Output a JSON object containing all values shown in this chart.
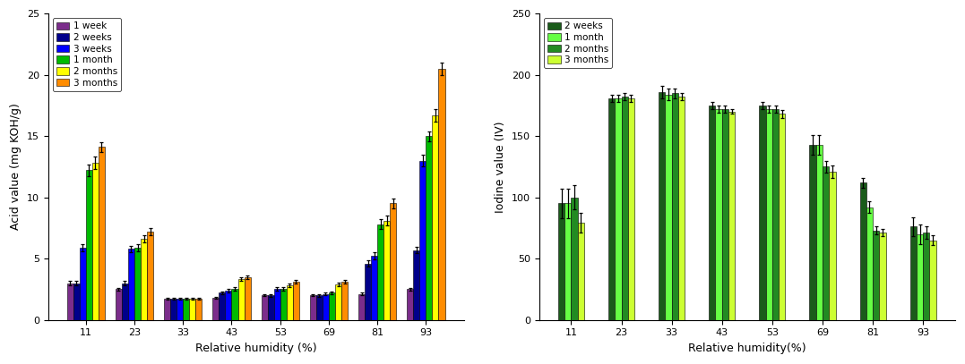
{
  "left_chart": {
    "xlabel": "Relative humidity (%)",
    "ylabel": "Acid value (mg KOH/g)",
    "ylim": [
      0,
      25
    ],
    "yticks": [
      0,
      5,
      10,
      15,
      20,
      25
    ],
    "categories": [
      11,
      23,
      33,
      43,
      53,
      69,
      81,
      93
    ],
    "series": [
      {
        "label": "1 week",
        "color": "#7B2D8B",
        "values": [
          3.0,
          2.5,
          1.7,
          1.8,
          2.0,
          2.0,
          2.1,
          2.5
        ],
        "errors": [
          0.15,
          0.12,
          0.08,
          0.08,
          0.08,
          0.08,
          0.1,
          0.12
        ]
      },
      {
        "label": "2 weeks",
        "color": "#00008B",
        "values": [
          3.0,
          3.0,
          1.7,
          2.2,
          2.0,
          2.0,
          4.6,
          5.7
        ],
        "errors": [
          0.2,
          0.15,
          0.08,
          0.1,
          0.1,
          0.1,
          0.25,
          0.25
        ]
      },
      {
        "label": "3 weeks",
        "color": "#0000FF",
        "values": [
          5.9,
          5.8,
          1.7,
          2.4,
          2.5,
          2.1,
          5.2,
          13.0
        ],
        "errors": [
          0.3,
          0.25,
          0.08,
          0.15,
          0.15,
          0.1,
          0.3,
          0.5
        ]
      },
      {
        "label": "1 month",
        "color": "#00BB00",
        "values": [
          12.2,
          5.9,
          1.7,
          2.5,
          2.5,
          2.2,
          7.8,
          15.0
        ],
        "errors": [
          0.5,
          0.3,
          0.08,
          0.15,
          0.15,
          0.1,
          0.4,
          0.4
        ]
      },
      {
        "label": "2 months",
        "color": "#FFFF00",
        "values": [
          12.8,
          6.6,
          1.7,
          3.3,
          2.8,
          2.9,
          8.1,
          16.7
        ],
        "errors": [
          0.5,
          0.3,
          0.08,
          0.15,
          0.15,
          0.15,
          0.4,
          0.5
        ]
      },
      {
        "label": "3 months",
        "color": "#FF8C00",
        "values": [
          14.1,
          7.2,
          1.7,
          3.5,
          3.1,
          3.1,
          9.5,
          20.5
        ],
        "errors": [
          0.4,
          0.3,
          0.08,
          0.15,
          0.15,
          0.15,
          0.4,
          0.5
        ]
      }
    ]
  },
  "right_chart": {
    "xlabel": "Relative humidity(%)",
    "ylabel": "Iodine value (IV)",
    "ylim": [
      0,
      250
    ],
    "yticks": [
      0,
      50,
      100,
      150,
      200,
      250
    ],
    "categories": [
      11,
      23,
      33,
      43,
      53,
      69,
      81,
      93
    ],
    "series": [
      {
        "label": "2 weeks",
        "color": "#1A5C1A",
        "values": [
          95,
          181,
          186,
          175,
          175,
          143,
          112,
          76
        ],
        "errors": [
          12,
          3,
          5,
          3,
          3,
          8,
          4,
          8
        ]
      },
      {
        "label": "1 month",
        "color": "#66FF44",
        "values": [
          95,
          181,
          184,
          172,
          172,
          143,
          92,
          70
        ],
        "errors": [
          12,
          3,
          5,
          3,
          3,
          8,
          5,
          8
        ]
      },
      {
        "label": "2 months",
        "color": "#228B22",
        "values": [
          100,
          182,
          185,
          172,
          172,
          125,
          73,
          71
        ],
        "errors": [
          10,
          3,
          4,
          3,
          3,
          5,
          3,
          5
        ]
      },
      {
        "label": "3 months",
        "color": "#CCFF33",
        "values": [
          79,
          181,
          182,
          170,
          168,
          121,
          71,
          65
        ],
        "errors": [
          8,
          3,
          3,
          2,
          3,
          5,
          3,
          4
        ]
      }
    ]
  },
  "figsize": [
    10.77,
    4.07
  ],
  "dpi": 100
}
